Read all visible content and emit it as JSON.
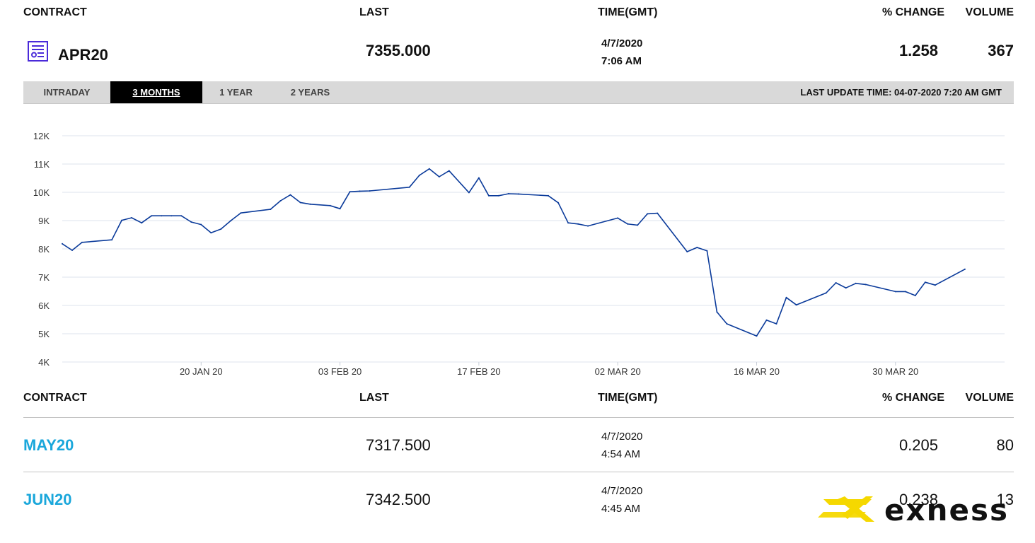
{
  "headers": {
    "contract": "CONTRACT",
    "last": "LAST",
    "time": "TIME(GMT)",
    "pct_change": "% CHANGE",
    "volume": "VOLUME"
  },
  "main_contract": {
    "icon": "document-chart-icon",
    "name": "APR20",
    "last": "7355.000",
    "date": "4/7/2020",
    "time": "7:06 AM",
    "pct_change": "1.258",
    "volume": "367"
  },
  "tabs": [
    {
      "label": "INTRADAY",
      "active": false
    },
    {
      "label": "3 MONTHS",
      "active": true
    },
    {
      "label": "1 YEAR",
      "active": false
    },
    {
      "label": "2 YEARS",
      "active": false
    }
  ],
  "last_update": "LAST UPDATE TIME: 04-07-2020 7:20 AM GMT",
  "colors": {
    "line": "#0a3a9a",
    "grid": "#dde3ec",
    "link": "#1aa7db",
    "tab_active": "#000000",
    "tabbar": "#d9d9d9",
    "brand_yellow": "#f5d800",
    "icon": "#4a2bd9"
  },
  "chart_data": {
    "type": "line",
    "title": "",
    "xlabel": "",
    "ylabel": "",
    "ylim": [
      4000,
      12000
    ],
    "yticks": [
      {
        "value": 4000,
        "label": "4K"
      },
      {
        "value": 5000,
        "label": "5K"
      },
      {
        "value": 6000,
        "label": "6K"
      },
      {
        "value": 7000,
        "label": "7K"
      },
      {
        "value": 8000,
        "label": "8K"
      },
      {
        "value": 9000,
        "label": "9K"
      },
      {
        "value": 10000,
        "label": "10K"
      },
      {
        "value": 11000,
        "label": "11K"
      },
      {
        "value": 12000,
        "label": "12K"
      }
    ],
    "xlim": [
      "2020-01-06",
      "2020-04-10"
    ],
    "xticks": [
      {
        "date": "2020-01-20",
        "label": "20 JAN 20"
      },
      {
        "date": "2020-02-03",
        "label": "03 FEB 20"
      },
      {
        "date": "2020-02-17",
        "label": "17 FEB 20"
      },
      {
        "date": "2020-03-02",
        "label": "02 MAR 20"
      },
      {
        "date": "2020-03-16",
        "label": "16 MAR 20"
      },
      {
        "date": "2020-03-30",
        "label": "30 MAR 20"
      }
    ],
    "grid": true,
    "series": [
      {
        "x": [
          "2020-01-06",
          "2020-01-07",
          "2020-01-08",
          "2020-01-11",
          "2020-01-12",
          "2020-01-13",
          "2020-01-14",
          "2020-01-15",
          "2020-01-16",
          "2020-01-17",
          "2020-01-18",
          "2020-01-19",
          "2020-01-20",
          "2020-01-21",
          "2020-01-22",
          "2020-01-23",
          "2020-01-24",
          "2020-01-27",
          "2020-01-28",
          "2020-01-29",
          "2020-01-30",
          "2020-01-31",
          "2020-02-02",
          "2020-02-03",
          "2020-02-04",
          "2020-02-05",
          "2020-02-06",
          "2020-02-10",
          "2020-02-11",
          "2020-02-12",
          "2020-02-13",
          "2020-02-14",
          "2020-02-16",
          "2020-02-17",
          "2020-02-18",
          "2020-02-19",
          "2020-02-20",
          "2020-02-21",
          "2020-02-24",
          "2020-02-25",
          "2020-02-26",
          "2020-02-27",
          "2020-02-28",
          "2020-03-02",
          "2020-03-03",
          "2020-03-04",
          "2020-03-05",
          "2020-03-06",
          "2020-03-09",
          "2020-03-10",
          "2020-03-11",
          "2020-03-12",
          "2020-03-13",
          "2020-03-16",
          "2020-03-17",
          "2020-03-18",
          "2020-03-19",
          "2020-03-20",
          "2020-03-23",
          "2020-03-24",
          "2020-03-25",
          "2020-03-26",
          "2020-03-27",
          "2020-03-30",
          "2020-03-31",
          "2020-04-01",
          "2020-04-02",
          "2020-04-03",
          "2020-04-06"
        ],
        "y": [
          8180,
          7950,
          8230,
          8320,
          9010,
          9100,
          8920,
          9170,
          9170,
          9170,
          9170,
          8950,
          8860,
          8570,
          8700,
          9000,
          9270,
          9400,
          9700,
          9910,
          9640,
          9580,
          9530,
          9420,
          10020,
          10040,
          10050,
          10180,
          10600,
          10830,
          10550,
          10760,
          9990,
          10510,
          9880,
          9880,
          9950,
          9940,
          9880,
          9630,
          8920,
          8880,
          8810,
          9090,
          8880,
          8840,
          9240,
          9260,
          7900,
          8050,
          7930,
          5770,
          5350,
          4920,
          5480,
          5350,
          6280,
          6020,
          6440,
          6800,
          6620,
          6780,
          6740,
          6490,
          6490,
          6350,
          6820,
          6720,
          7280
        ]
      }
    ]
  },
  "rows": [
    {
      "contract": "MAY20",
      "last": "7317.500",
      "date": "4/7/2020",
      "time": "4:54 AM",
      "pct_change": "0.205",
      "volume": "80"
    },
    {
      "contract": "JUN20",
      "last": "7342.500",
      "date": "4/7/2020",
      "time": "4:45 AM",
      "pct_change": "0.238",
      "volume": "13"
    }
  ],
  "brand": {
    "name": "exness",
    "icon": "exness-logo-icon"
  }
}
